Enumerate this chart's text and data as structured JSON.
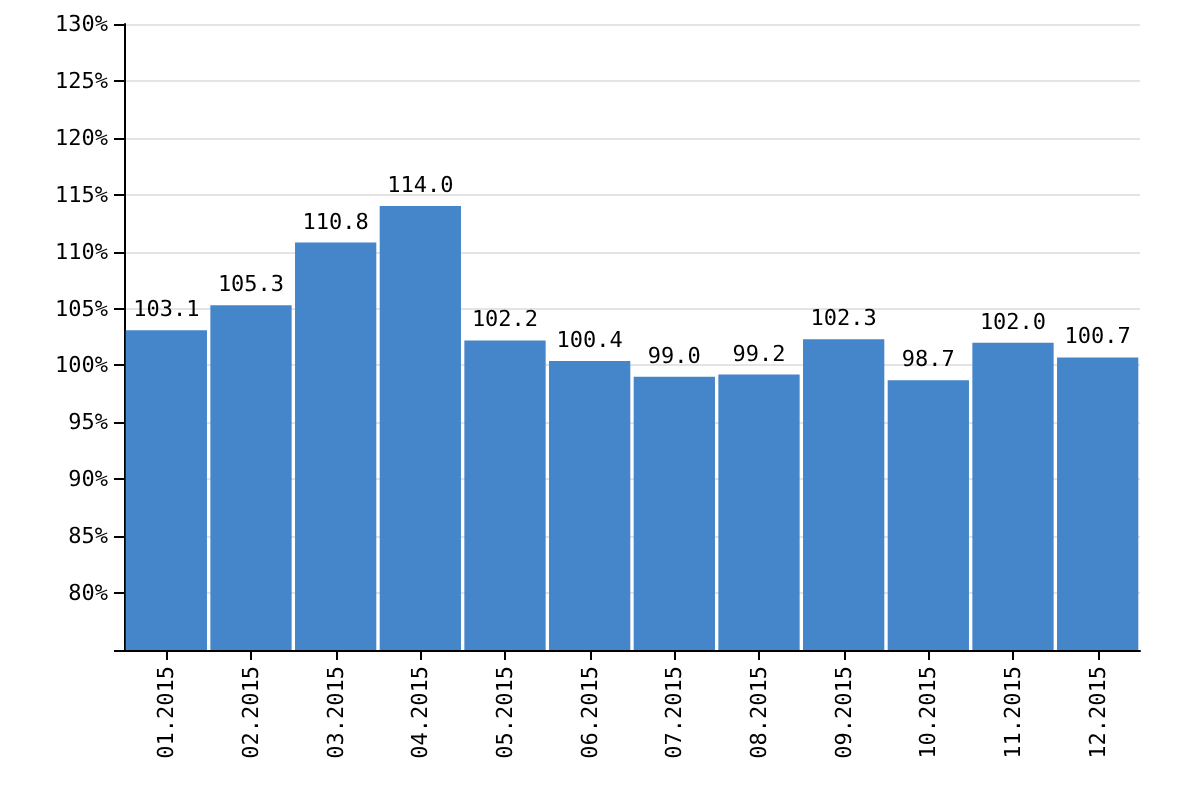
{
  "chart_data": {
    "type": "bar",
    "categories": [
      "01.2015",
      "02.2015",
      "03.2015",
      "04.2015",
      "05.2015",
      "06.2015",
      "07.2015",
      "08.2015",
      "09.2015",
      "10.2015",
      "11.2015",
      "12.2015"
    ],
    "values": [
      103.1,
      105.3,
      110.8,
      114.0,
      102.2,
      100.4,
      99.0,
      99.2,
      102.3,
      98.7,
      102.0,
      100.7
    ],
    "value_labels": [
      "103.1",
      "105.3",
      "110.8",
      "114.0",
      "102.2",
      "100.4",
      "99.0",
      "99.2",
      "102.3",
      "98.7",
      "102.0",
      "100.7"
    ],
    "color": "#4486c9",
    "ylim": [
      75,
      130
    ],
    "yticks": [
      {
        "value": 75,
        "label": null
      },
      {
        "value": 80,
        "label": "80%"
      },
      {
        "value": 85,
        "label": "85%"
      },
      {
        "value": 90,
        "label": "90%"
      },
      {
        "value": 95,
        "label": "95%"
      },
      {
        "value": 100,
        "label": "100%"
      },
      {
        "value": 105,
        "label": "105%"
      },
      {
        "value": 110,
        "label": "110%"
      },
      {
        "value": 115,
        "label": "115%"
      },
      {
        "value": 120,
        "label": "120%"
      },
      {
        "value": 125,
        "label": "125%"
      },
      {
        "value": 130,
        "label": "130%"
      }
    ],
    "grid": "y"
  }
}
